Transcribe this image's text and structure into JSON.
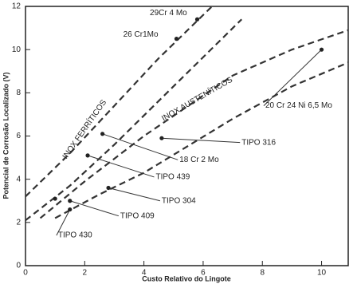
{
  "chart_data": {
    "type": "scatter",
    "xlabel": "Custo Relativo do Lingote",
    "ylabel": "Potencial de Corrosão Localizado (V)",
    "xlim": [
      0,
      10.9
    ],
    "ylim": [
      0,
      12
    ],
    "xticks": [
      0,
      2,
      4,
      6,
      8,
      10
    ],
    "yticks": [
      0,
      2,
      4,
      6,
      8,
      10,
      12
    ],
    "color": "#222222",
    "x": [
      5.8,
      5.1,
      2.6,
      4.6,
      2.1,
      2.8,
      1.0,
      1.5,
      1.5,
      10.0
    ],
    "y": [
      11.4,
      10.5,
      6.1,
      5.9,
      5.1,
      3.6,
      3.1,
      3.0,
      2.6,
      10.0
    ],
    "curves": [
      {
        "x": [
          0,
          1.5,
          3,
          4.5,
          6.3
        ],
        "y": [
          3.2,
          5.2,
          7.4,
          9.6,
          12
        ]
      },
      {
        "x": [
          0,
          1.5,
          3,
          5,
          7.3
        ],
        "y": [
          2.1,
          3.7,
          5.6,
          8.3,
          11.4
        ]
      },
      {
        "x": [
          0.5,
          2,
          4,
          7,
          9,
          10.9
        ],
        "y": [
          2.2,
          3.9,
          6.0,
          8.8,
          10.0,
          10.9
        ]
      },
      {
        "x": [
          1,
          2.5,
          4,
          7,
          9,
          10.9
        ],
        "y": [
          2.2,
          3.3,
          4.3,
          6.8,
          8.3,
          9.4
        ]
      }
    ],
    "annotations": [
      "29Cr 4 Mo",
      "26 Cr1Mo",
      "18 Cr 2 Mo",
      "TIPO 316",
      "TIPO 439",
      "TIPO 304",
      "TIPO 409",
      "TIPO 430",
      "20 Cr 24 Ni 6,5 Mo"
    ],
    "region_labels": [
      "INOX FERRÍTICOS",
      "INOX AUSTENÍTICOS"
    ]
  }
}
